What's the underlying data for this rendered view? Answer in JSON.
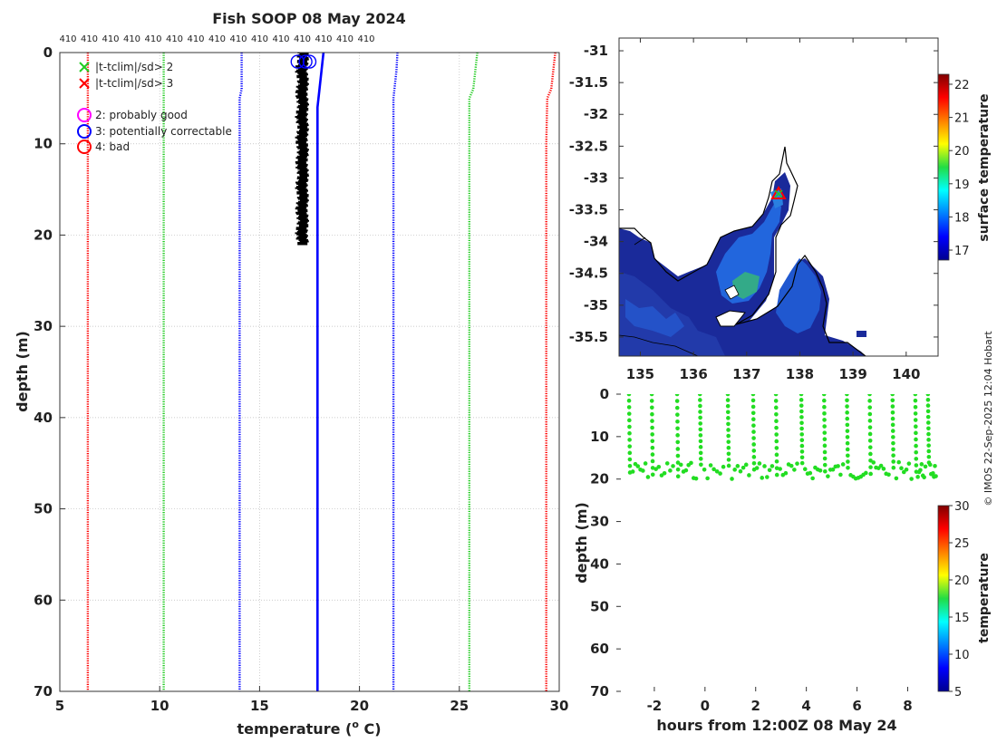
{
  "colors": {
    "qc_red": "#ff0000",
    "qc_green": "#22cc22",
    "qc_blue": "#0000ff",
    "qc_magenta": "#ff00ff",
    "profile": "#000000",
    "land": "#ffffff",
    "sea_cold": "#1a2a9a",
    "sea_mid": "#2266dd",
    "sea_warm": "#33aa88",
    "obs_marker": "#ff0000",
    "timeseries": "#22dd22"
  },
  "chart_data": [
    {
      "type": "line",
      "title": "Fish SOOP 08 May 2024",
      "xlabel": "temperature (",
      "xlabel_sup": "o",
      "xlabel_tail": " C)",
      "ylabel": "depth (m)",
      "xlim": [
        5,
        30
      ],
      "ylim": [
        70,
        0
      ],
      "xticks": [
        5,
        10,
        15,
        20,
        25,
        30
      ],
      "yticks": [
        0,
        10,
        20,
        30,
        40,
        50,
        60,
        70
      ],
      "grid": true,
      "top_labels": [
        "410",
        "410",
        "410",
        "410",
        "410",
        "410",
        "410",
        "410",
        "410",
        "410",
        "410",
        "410",
        "410",
        "410",
        "410"
      ],
      "legend": {
        "placement": "top-left",
        "entries": [
          {
            "symbol": "x",
            "color": "#22cc22",
            "label": "|t-tclim|/sd> 2"
          },
          {
            "symbol": "x",
            "color": "#ff0000",
            "label": "|t-tclim|/sd> 3"
          },
          {
            "symbol": "o",
            "color": "#ff00ff",
            "label": "2: probably good"
          },
          {
            "symbol": "o",
            "color": "#0000ff",
            "label": "3: potentially correctable"
          },
          {
            "symbol": "o",
            "color": "#ff0000",
            "label": "4: bad"
          }
        ]
      },
      "series": [
        {
          "color": "#ff0000",
          "style": "dotted",
          "points": [
            [
              29.8,
              0
            ],
            [
              29.7,
              2
            ],
            [
              29.6,
              4
            ],
            [
              29.4,
              5
            ],
            [
              29.35,
              10
            ],
            [
              29.35,
              60
            ],
            [
              29.35,
              70
            ]
          ]
        },
        {
          "color": "#ff0000",
          "style": "dotted",
          "points": [
            [
              6.4,
              0
            ],
            [
              6.4,
              70
            ]
          ]
        },
        {
          "color": "#22cc22",
          "style": "dotted",
          "points": [
            [
              25.9,
              0
            ],
            [
              25.8,
              2
            ],
            [
              25.7,
              4
            ],
            [
              25.5,
              5
            ],
            [
              25.5,
              60
            ],
            [
              25.5,
              70
            ]
          ]
        },
        {
          "color": "#22cc22",
          "style": "dotted",
          "points": [
            [
              10.2,
              0
            ],
            [
              10.2,
              70
            ]
          ]
        },
        {
          "color": "#0000ff",
          "style": "dotted",
          "points": [
            [
              21.9,
              0
            ],
            [
              21.85,
              2
            ],
            [
              21.75,
              4
            ],
            [
              21.7,
              5
            ],
            [
              21.7,
              60
            ],
            [
              21.7,
              70
            ]
          ]
        },
        {
          "color": "#0000ff",
          "style": "dotted",
          "points": [
            [
              14.1,
              0
            ],
            [
              14.1,
              4
            ],
            [
              14.0,
              5
            ],
            [
              14.0,
              70
            ]
          ]
        },
        {
          "color": "#0000ff",
          "style": "solid",
          "points": [
            [
              18.2,
              0
            ],
            [
              18.1,
              2
            ],
            [
              18.0,
              4
            ],
            [
              17.9,
              6
            ],
            [
              17.9,
              70
            ]
          ]
        }
      ],
      "profile_band": {
        "t_min": 16.9,
        "t_max": 17.4,
        "depth_max": 21
      },
      "flag_circles": [
        [
          16.9,
          1.0
        ],
        [
          17.3,
          1.0
        ],
        [
          17.5,
          1.0
        ]
      ]
    },
    {
      "type": "heatmap",
      "xlim": [
        134.6,
        140.6
      ],
      "ylim": [
        -35.8,
        -30.8
      ],
      "xticks": [
        135,
        136,
        137,
        138,
        139,
        140
      ],
      "yticks": [
        -31,
        -31.5,
        -32,
        -32.5,
        -33,
        -33.5,
        -34,
        -34.5,
        -35,
        -35.5
      ],
      "colorbar": {
        "label": "surface temperature",
        "min": 16.7,
        "max": 22.3,
        "ticks": [
          17,
          18,
          19,
          20,
          21,
          22
        ]
      },
      "observation": {
        "lon": 137.6,
        "lat": -33.25
      }
    },
    {
      "type": "scatter",
      "xlabel": "hours from 12:00Z 08 May 24",
      "ylabel": "depth (m)",
      "xlim": [
        -3.5,
        9.2
      ],
      "ylim": [
        70,
        0
      ],
      "xticks": [
        -2,
        0,
        2,
        4,
        6,
        8
      ],
      "yticks": [
        0,
        10,
        20,
        30,
        40,
        50,
        60,
        70
      ],
      "cycle_tops": [
        -3.0,
        -2.1,
        -1.1,
        -0.2,
        0.9,
        1.9,
        2.8,
        3.8,
        4.7,
        5.6,
        6.5,
        7.4,
        8.3,
        8.8
      ],
      "bottom_depth": {
        "min": 16,
        "max": 21
      },
      "colorbar": {
        "label": "temperature",
        "min": 5,
        "max": 30,
        "ticks": [
          5,
          10,
          15,
          20,
          25,
          30
        ]
      }
    }
  ],
  "watermark": "© IMOS 22-Sep-2025 12:04 Hobart"
}
